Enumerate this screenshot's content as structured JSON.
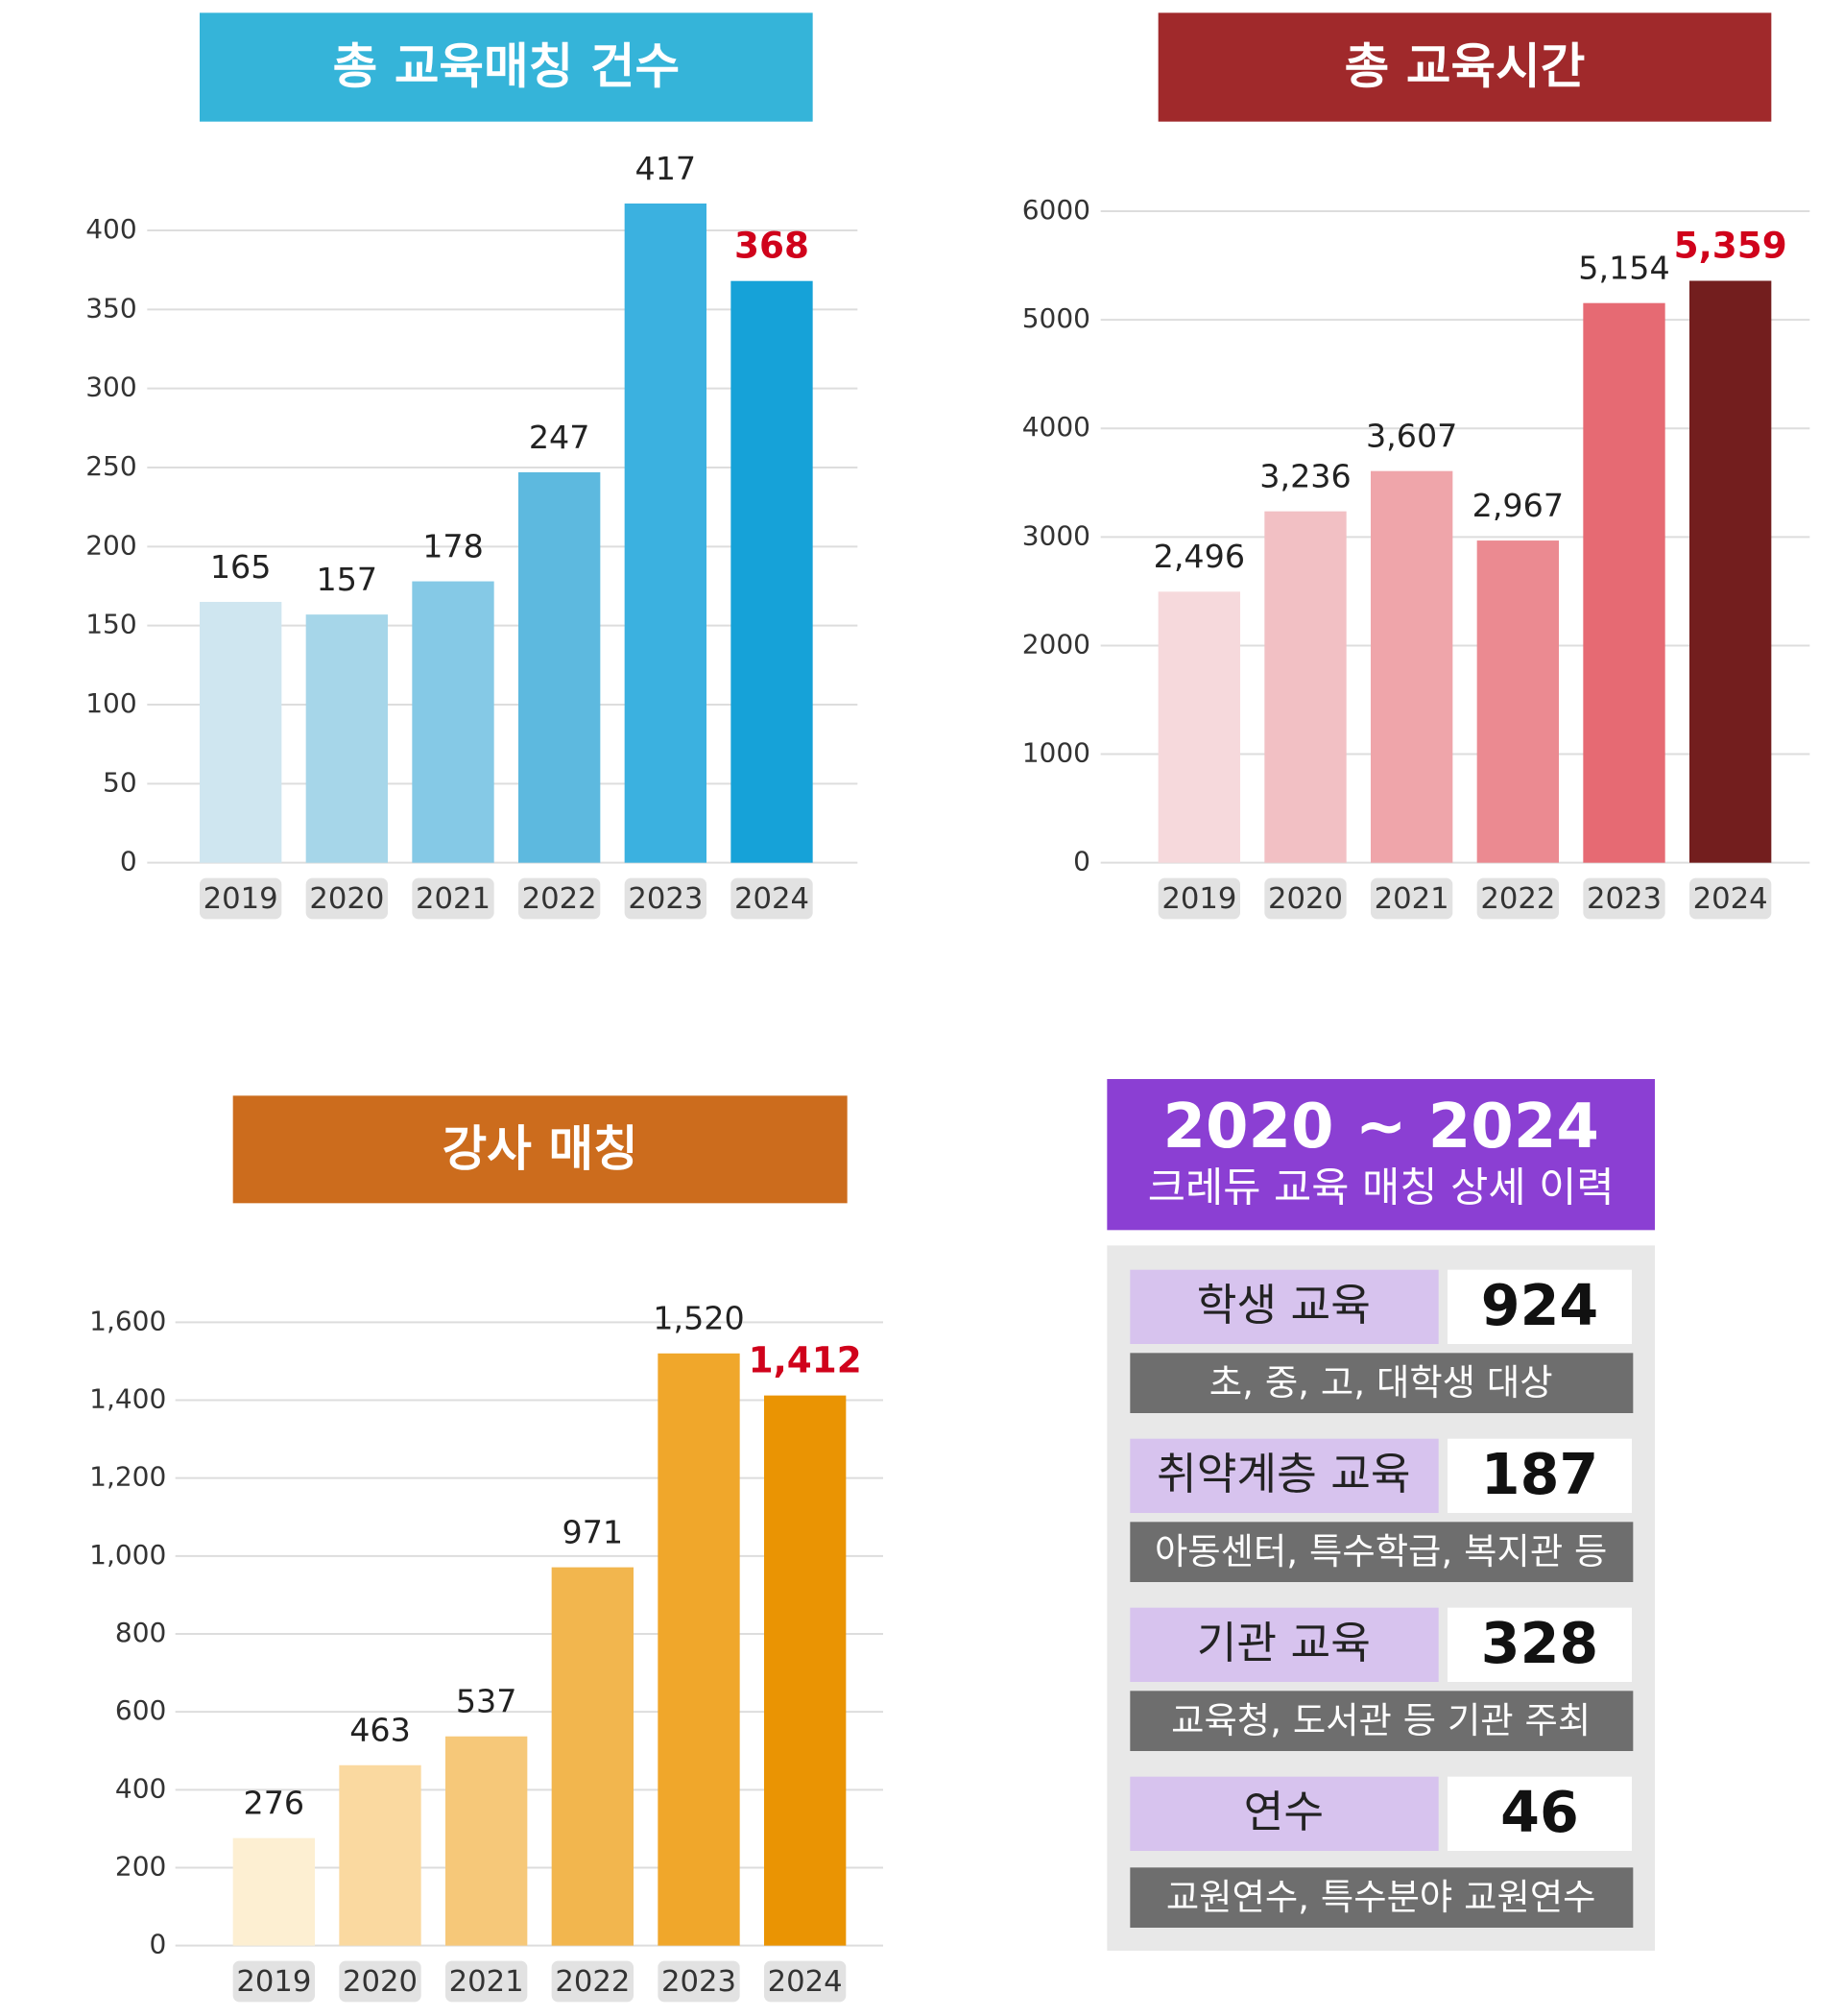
{
  "chart_data": [
    {
      "type": "bar",
      "title": "총 교육매칭 건수",
      "title_color": "#35b4d9",
      "categories": [
        "2019",
        "2020",
        "2021",
        "2022",
        "2023",
        "2024"
      ],
      "values": [
        165,
        157,
        178,
        247,
        417,
        368
      ],
      "colors": [
        "#cfe6f0",
        "#a6d6e9",
        "#85c9e6",
        "#5db9df",
        "#3bb1e0",
        "#16a2d8"
      ],
      "label_colors": [
        "#222222",
        "#222222",
        "#222222",
        "#222222",
        "#222222",
        "#d0021b"
      ],
      "ylim": [
        0,
        400
      ],
      "yticks": [
        0,
        50,
        100,
        150,
        200,
        250,
        300,
        350,
        400
      ],
      "grid": true
    },
    {
      "type": "bar",
      "title": "총 교육시간",
      "title_color": "#a0292b",
      "categories": [
        "2019",
        "2020",
        "2021",
        "2022",
        "2023",
        "2024"
      ],
      "values": [
        2496,
        3236,
        3607,
        2967,
        5154,
        5359
      ],
      "value_labels": [
        "2,496",
        "3,236",
        "3,607",
        "2,967",
        "5,154",
        "5,359"
      ],
      "colors": [
        "#f6d9dc",
        "#f2c0c4",
        "#efa5aa",
        "#eb8a91",
        "#e66a73",
        "#731e1e"
      ],
      "label_colors": [
        "#222222",
        "#222222",
        "#222222",
        "#222222",
        "#222222",
        "#d0021b"
      ],
      "ylim": [
        0,
        6000
      ],
      "yticks": [
        0,
        1000,
        2000,
        3000,
        4000,
        5000,
        6000
      ],
      "grid": true
    },
    {
      "type": "bar",
      "title": "강사 매칭",
      "title_color": "#cc6c1d",
      "categories": [
        "2019",
        "2020",
        "2021",
        "2022",
        "2023",
        "2024"
      ],
      "values": [
        276,
        463,
        537,
        971,
        1520,
        1412
      ],
      "value_labels": [
        "276",
        "463",
        "537",
        "971",
        "1,520",
        "1,412"
      ],
      "colors": [
        "#fdefd2",
        "#fad9a0",
        "#f6c879",
        "#f2b64e",
        "#f0a72b",
        "#ea9403"
      ],
      "label_colors": [
        "#222222",
        "#222222",
        "#222222",
        "#222222",
        "#222222",
        "#d0021b"
      ],
      "ylim": [
        0,
        1600
      ],
      "yticks": [
        0,
        200,
        400,
        600,
        800,
        {
          "value": 1000,
          "label": "1,000"
        },
        {
          "value": 1200,
          "label": "1,200"
        },
        {
          "value": 1400,
          "label": "1,400"
        },
        {
          "value": 1600,
          "label": "1,600"
        }
      ],
      "grid": true
    }
  ],
  "panel": {
    "title": "2020 ~ 2024",
    "subtitle": "크레듀 교육 매칭 상세 이력",
    "rows": [
      {
        "label": "학생 교육",
        "value": "924",
        "description": "초, 중, 고, 대학생 대상"
      },
      {
        "label": "취약계층 교육",
        "value": "187",
        "description": "아동센터, 특수학급, 복지관 등"
      },
      {
        "label": "기관 교육",
        "value": "328",
        "description": "교육청, 도서관 등 기관 주최"
      },
      {
        "label": "연수",
        "value": "46",
        "description": "교원연수, 특수분야 교원연수"
      }
    ]
  }
}
